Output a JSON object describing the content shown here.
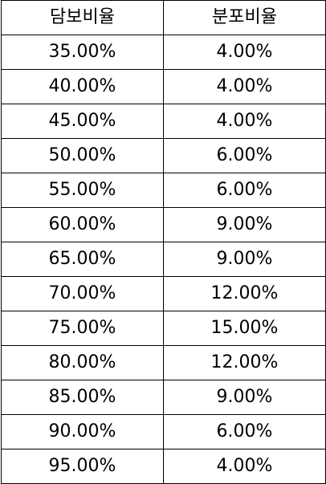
{
  "table": {
    "columns": [
      "담보비율",
      "분포비율"
    ],
    "rows": [
      [
        "35.00%",
        "4.00%"
      ],
      [
        "40.00%",
        "4.00%"
      ],
      [
        "45.00%",
        "4.00%"
      ],
      [
        "50.00%",
        "6.00%"
      ],
      [
        "55.00%",
        "6.00%"
      ],
      [
        "60.00%",
        "9.00%"
      ],
      [
        "65.00%",
        "9.00%"
      ],
      [
        "70.00%",
        "12.00%"
      ],
      [
        "75.00%",
        "15.00%"
      ],
      [
        "80.00%",
        "12.00%"
      ],
      [
        "85.00%",
        "9.00%"
      ],
      [
        "90.00%",
        "6.00%"
      ],
      [
        "95.00%",
        "4.00%"
      ]
    ]
  }
}
